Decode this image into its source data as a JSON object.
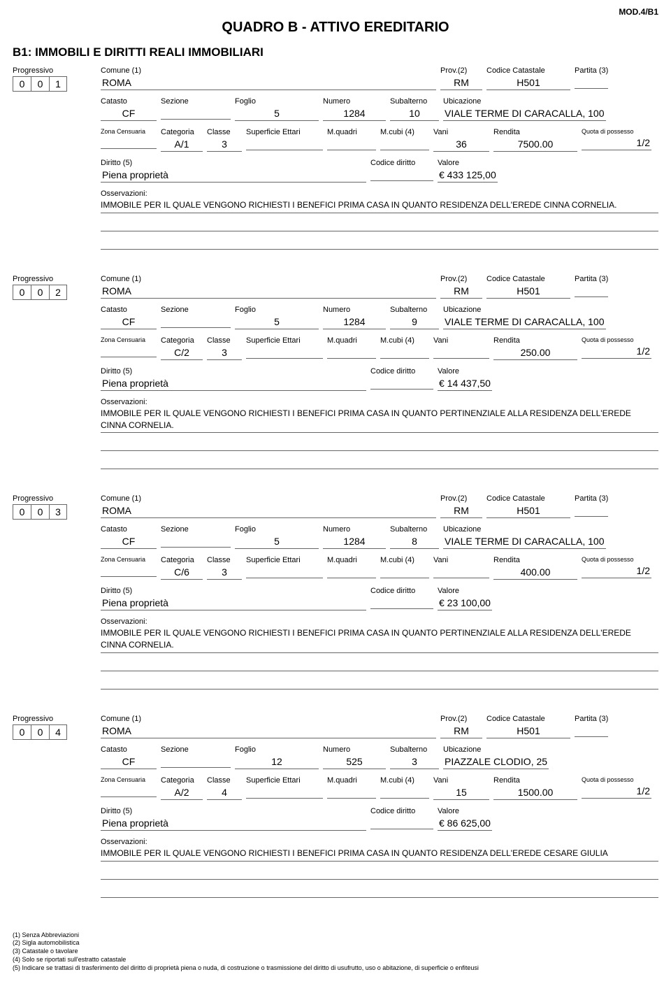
{
  "header": {
    "mod_label": "MOD.4/B1",
    "title": "QUADRO B - ATTIVO EREDITARIO",
    "section_title": "B1: IMMOBILI E DIRITTI REALI IMMOBILIARI"
  },
  "labels": {
    "progressivo": "Progressivo",
    "comune": "Comune (1)",
    "prov": "Prov.(2)",
    "codice_catastale": "Codice Catastale",
    "partita": "Partita (3)",
    "catasto": "Catasto",
    "sezione": "Sezione",
    "foglio": "Foglio",
    "numero": "Numero",
    "subalterno": "Subalterno",
    "ubicazione": "Ubicazione",
    "zona_censuaria": "Zona Censuaria",
    "categoria": "Categoria",
    "classe": "Classe",
    "superficie_ettari": "Superficie Ettari",
    "m_quadri": "M.quadri",
    "m_cubi": "M.cubi (4)",
    "vani": "Vani",
    "rendita": "Rendita",
    "quota_possesso": "Quota di possesso",
    "diritto": "Diritto (5)",
    "codice_diritto": "Codice diritto",
    "valore": "Valore",
    "osservazioni": "Osservazioni:"
  },
  "entries": [
    {
      "progressivo": [
        "0",
        "0",
        "1"
      ],
      "comune": "ROMA",
      "prov": "RM",
      "codice_catastale": "H501",
      "partita": "",
      "catasto": "CF",
      "sezione": "",
      "foglio": "5",
      "numero": "1284",
      "subalterno": "10",
      "ubicazione": "VIALE TERME DI CARACALLA, 100",
      "zona_censuaria": "",
      "categoria": "A/1",
      "classe": "3",
      "superficie_ettari": "",
      "m_quadri": "",
      "m_cubi": "",
      "vani": "36",
      "rendita": "7500.00",
      "quota_possesso": "1/2",
      "diritto": "Piena proprietà",
      "codice_diritto": "",
      "valore": "€  433 125,00",
      "osservazioni": "IMMOBILE PER IL QUALE VENGONO RICHIESTI I BENEFICI PRIMA CASA IN QUANTO RESIDENZA DELL'EREDE CINNA CORNELIA."
    },
    {
      "progressivo": [
        "0",
        "0",
        "2"
      ],
      "comune": "ROMA",
      "prov": "RM",
      "codice_catastale": "H501",
      "partita": "",
      "catasto": "CF",
      "sezione": "",
      "foglio": "5",
      "numero": "1284",
      "subalterno": "9",
      "ubicazione": "VIALE TERME DI CARACALLA, 100",
      "zona_censuaria": "",
      "categoria": "C/2",
      "classe": "3",
      "superficie_ettari": "",
      "m_quadri": "",
      "m_cubi": "",
      "vani": "",
      "rendita": "250.00",
      "quota_possesso": "1/2",
      "diritto": "Piena proprietà",
      "codice_diritto": "",
      "valore": "€  14 437,50",
      "osservazioni": "IMMOBILE PER IL QUALE VENGONO RICHIESTI I BENEFICI PRIMA CASA IN QUANTO PERTINENZIALE ALLA RESIDENZA DELL'EREDE CINNA CORNELIA."
    },
    {
      "progressivo": [
        "0",
        "0",
        "3"
      ],
      "comune": "ROMA",
      "prov": "RM",
      "codice_catastale": "H501",
      "partita": "",
      "catasto": "CF",
      "sezione": "",
      "foglio": "5",
      "numero": "1284",
      "subalterno": "8",
      "ubicazione": "VIALE TERME DI CARACALLA, 100",
      "zona_censuaria": "",
      "categoria": "C/6",
      "classe": "3",
      "superficie_ettari": "",
      "m_quadri": "",
      "m_cubi": "",
      "vani": "",
      "rendita": "400.00",
      "quota_possesso": "1/2",
      "diritto": "Piena proprietà",
      "codice_diritto": "",
      "valore": "€  23 100,00",
      "osservazioni": "IMMOBILE PER IL QUALE VENGONO RICHIESTI I BENEFICI PRIMA CASA IN QUANTO PERTINENZIALE ALLA RESIDENZA DELL'EREDE CINNA CORNELIA."
    },
    {
      "progressivo": [
        "0",
        "0",
        "4"
      ],
      "comune": "ROMA",
      "prov": "RM",
      "codice_catastale": "H501",
      "partita": "",
      "catasto": "CF",
      "sezione": "",
      "foglio": "12",
      "numero": "525",
      "subalterno": "3",
      "ubicazione": "PIAZZALE CLODIO, 25",
      "zona_censuaria": "",
      "categoria": "A/2",
      "classe": "4",
      "superficie_ettari": "",
      "m_quadri": "",
      "m_cubi": "",
      "vani": "15",
      "rendita": "1500.00",
      "quota_possesso": "1/2",
      "diritto": "Piena proprietà",
      "codice_diritto": "",
      "valore": "€  86 625,00",
      "osservazioni": "IMMOBILE PER IL QUALE VENGONO RICHIESTI I BENEFICI PRIMA CASA IN QUANTO RESIDENZA DELL'EREDE CESARE GIULIA"
    }
  ],
  "footnotes": [
    "(1) Senza Abbreviazioni",
    "(2) Sigla automobilistica",
    "(3) Catastale o tavolare",
    "(4) Solo se riportati sull'estratto catastale",
    "(5) Indicare se trattasi di trasferimento del diritto di proprietà piena o nuda, di costruzione o trasmissione del diritto di usufrutto, uso o abitazione, di superficie o enfiteusi"
  ]
}
